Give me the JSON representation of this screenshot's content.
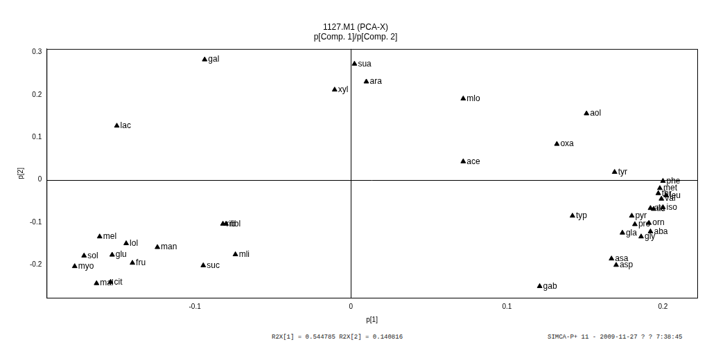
{
  "chart_data": {
    "type": "scatter",
    "title": "1127.M1 (PCA-X)",
    "subtitle": "p[Comp. 1]/p[Comp. 2]",
    "x_label": "p[1]",
    "y_label": "p[2]",
    "annotations": [
      "R2X[1] = 0.544785 R2X[2] = 0.140816",
      "SIMCA-P+ 11 - 2009-11-27 ? ? 7:38:45"
    ],
    "point_labels": [
      "gal",
      "lac",
      "xyl",
      "sua",
      "ara",
      "mlo",
      "aol",
      "oxa",
      "ace",
      "tyr",
      "phe",
      "met",
      "thr",
      "leu",
      "val",
      "iso",
      "ile",
      "ala",
      "typ",
      "pyr",
      "pro",
      "orn",
      "gla",
      "aba",
      "gly",
      "asa",
      "asp",
      "gab",
      "mel",
      "lol",
      "man",
      "sol",
      "glu",
      "myo",
      "fru",
      "mal",
      "cit",
      "rib",
      "ribl",
      "mli",
      "suc"
    ],
    "x": [
      -0.0937,
      -0.15,
      -0.0104,
      0.0023,
      0.0099,
      0.072,
      0.151,
      0.132,
      0.072,
      0.169,
      0.2,
      0.198,
      0.197,
      0.202,
      0.199,
      0.2,
      0.194,
      0.192,
      0.142,
      0.18,
      0.182,
      0.191,
      0.174,
      0.192,
      0.186,
      0.167,
      0.17,
      0.121,
      -0.161,
      -0.144,
      -0.124,
      -0.171,
      -0.153,
      -0.177,
      -0.14,
      -0.163,
      -0.154,
      -0.082,
      -0.08,
      -0.074,
      -0.0946
    ],
    "values": [
      0.283,
      0.127,
      0.212,
      0.273,
      0.231,
      0.191,
      0.156,
      0.084,
      0.043,
      0.018,
      -0.003,
      -0.02,
      -0.032,
      -0.037,
      -0.045,
      -0.065,
      -0.069,
      -0.067,
      -0.085,
      -0.085,
      -0.105,
      -0.102,
      -0.125,
      -0.122,
      -0.134,
      -0.186,
      -0.201,
      -0.251,
      -0.134,
      -0.15,
      -0.159,
      -0.179,
      -0.177,
      -0.204,
      -0.196,
      -0.244,
      -0.241,
      -0.104,
      -0.104,
      -0.176,
      -0.202
    ],
    "xlim": [
      -0.195,
      0.222
    ],
    "xticks": [
      -0.1,
      0,
      0.1,
      0.2
    ],
    "ylim": [
      -0.278,
      0.308
    ],
    "yticks": [
      -0.2,
      -0.1,
      0,
      0.1,
      0.2,
      0.3
    ],
    "color": "#000000",
    "marker": "triangle",
    "grid": false
  }
}
